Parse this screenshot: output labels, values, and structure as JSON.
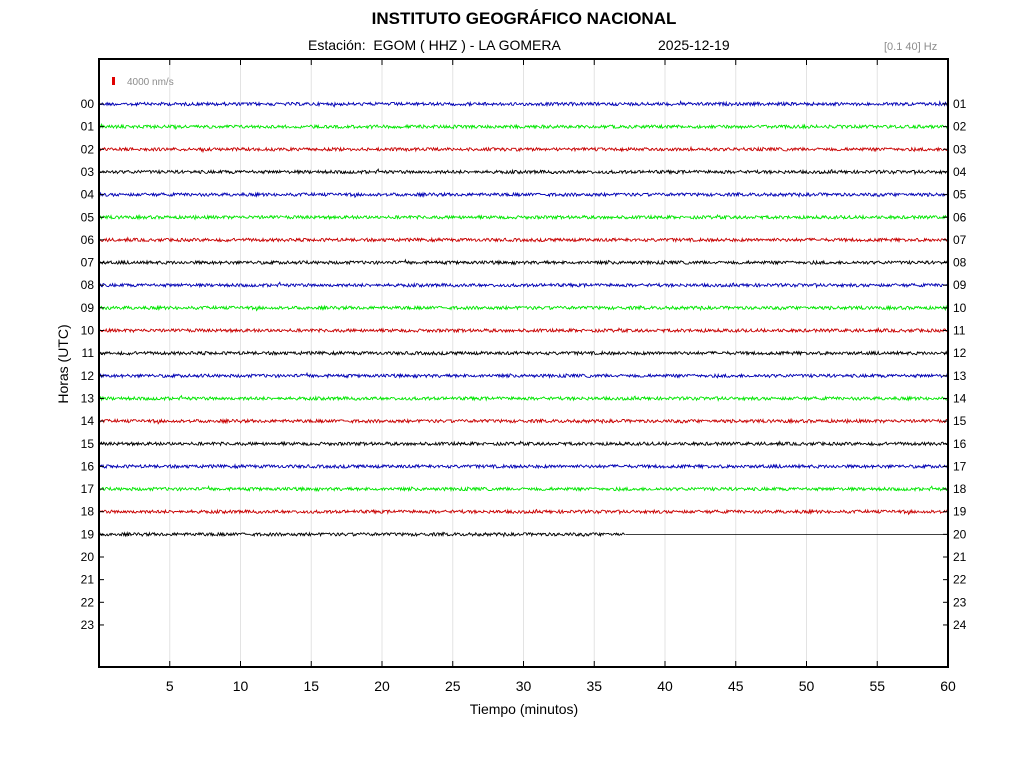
{
  "header": {
    "title": "INSTITUTO GEOGRÁFICO NACIONAL",
    "station": "Estación:  EGOM ( HHZ ) - LA GOMERA",
    "date": "2025-12-19",
    "filter": "[0.1 40] Hz"
  },
  "scale": {
    "label": "4000 nm/s",
    "color": "#e00000"
  },
  "chart_data": {
    "type": "line",
    "title": "INSTITUTO GEOGRÁFICO NACIONAL",
    "xlabel": "Tiempo (minutos)",
    "ylabel": "Horas (UTC)",
    "xlim": [
      0,
      60
    ],
    "x_ticks": [
      5,
      10,
      15,
      20,
      25,
      30,
      35,
      40,
      45,
      50,
      55,
      60
    ],
    "left_hour_labels": [
      "00",
      "01",
      "02",
      "03",
      "04",
      "05",
      "06",
      "07",
      "08",
      "09",
      "10",
      "11",
      "12",
      "13",
      "14",
      "15",
      "16",
      "17",
      "18",
      "19",
      "20",
      "21",
      "22",
      "23"
    ],
    "right_hour_labels": [
      "01",
      "02",
      "03",
      "04",
      "05",
      "06",
      "07",
      "08",
      "09",
      "10",
      "11",
      "12",
      "13",
      "14",
      "15",
      "16",
      "17",
      "18",
      "19",
      "20",
      "21",
      "22",
      "23",
      "24"
    ],
    "trace_colors": [
      "#0000b4",
      "#00e600",
      "#c80000",
      "#000000"
    ],
    "trace_color_names": [
      "blue",
      "green",
      "red",
      "black"
    ],
    "recorded_hours": 20,
    "last_hour_recorded_minutes": 37.2,
    "grid": true,
    "series": [
      {
        "hour": "00",
        "color": "#0000b4",
        "recorded_minutes": 60
      },
      {
        "hour": "01",
        "color": "#00e600",
        "recorded_minutes": 60
      },
      {
        "hour": "02",
        "color": "#c80000",
        "recorded_minutes": 60
      },
      {
        "hour": "03",
        "color": "#000000",
        "recorded_minutes": 60
      },
      {
        "hour": "04",
        "color": "#0000b4",
        "recorded_minutes": 60
      },
      {
        "hour": "05",
        "color": "#00e600",
        "recorded_minutes": 60
      },
      {
        "hour": "06",
        "color": "#c80000",
        "recorded_minutes": 60
      },
      {
        "hour": "07",
        "color": "#000000",
        "recorded_minutes": 60
      },
      {
        "hour": "08",
        "color": "#0000b4",
        "recorded_minutes": 60
      },
      {
        "hour": "09",
        "color": "#00e600",
        "recorded_minutes": 60
      },
      {
        "hour": "10",
        "color": "#c80000",
        "recorded_minutes": 60
      },
      {
        "hour": "11",
        "color": "#000000",
        "recorded_minutes": 60
      },
      {
        "hour": "12",
        "color": "#0000b4",
        "recorded_minutes": 60
      },
      {
        "hour": "13",
        "color": "#00e600",
        "recorded_minutes": 60
      },
      {
        "hour": "14",
        "color": "#c80000",
        "recorded_minutes": 60
      },
      {
        "hour": "15",
        "color": "#000000",
        "recorded_minutes": 60
      },
      {
        "hour": "16",
        "color": "#0000b4",
        "recorded_minutes": 60
      },
      {
        "hour": "17",
        "color": "#00e600",
        "recorded_minutes": 60
      },
      {
        "hour": "18",
        "color": "#c80000",
        "recorded_minutes": 60
      },
      {
        "hour": "19",
        "color": "#000000",
        "recorded_minutes": 37.2
      }
    ]
  }
}
